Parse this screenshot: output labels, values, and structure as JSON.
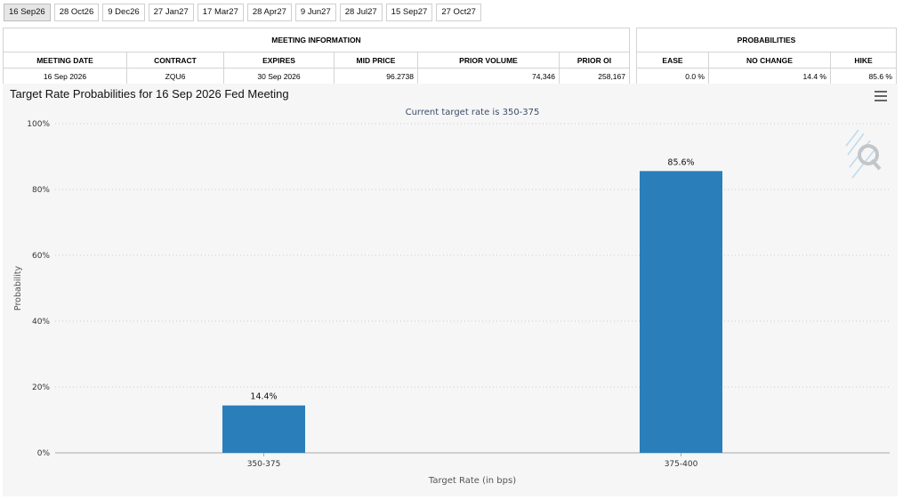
{
  "tabs": [
    {
      "label": "16 Sep26",
      "active": true
    },
    {
      "label": "28 Oct26",
      "active": false
    },
    {
      "label": "9 Dec26",
      "active": false
    },
    {
      "label": "27 Jan27",
      "active": false
    },
    {
      "label": "17 Mar27",
      "active": false
    },
    {
      "label": "28 Apr27",
      "active": false
    },
    {
      "label": "9 Jun27",
      "active": false
    },
    {
      "label": "28 Jul27",
      "active": false
    },
    {
      "label": "15 Sep27",
      "active": false
    },
    {
      "label": "27 Oct27",
      "active": false
    }
  ],
  "meeting_info": {
    "group_title": "MEETING INFORMATION",
    "headers": {
      "meeting_date": "MEETING DATE",
      "contract": "CONTRACT",
      "expires": "EXPIRES",
      "mid_price": "MID PRICE",
      "prior_volume": "PRIOR VOLUME",
      "prior_oi": "PRIOR OI"
    },
    "row": {
      "meeting_date": "16 Sep 2026",
      "contract": "ZQU6",
      "expires": "30 Sep 2026",
      "mid_price": "96.2738",
      "prior_volume": "74,346",
      "prior_oi": "258,167"
    }
  },
  "probabilities": {
    "group_title": "PROBABILITIES",
    "headers": {
      "ease": "EASE",
      "no_change": "NO CHANGE",
      "hike": "HIKE"
    },
    "row": {
      "ease": "0.0 %",
      "no_change": "14.4 %",
      "hike": "85.6 %"
    }
  },
  "chart": {
    "title": "Target Rate Probabilities for 16 Sep 2026 Fed Meeting",
    "menu_icon": "hamburger-menu-icon",
    "watermark_icon": "q-logo-icon"
  },
  "chart_data": {
    "type": "bar",
    "subtitle": "Current target rate is 350-375",
    "categories": [
      "350-375",
      "375-400"
    ],
    "values": [
      14.4,
      85.6
    ],
    "value_labels": [
      "14.4%",
      "85.6%"
    ],
    "xlabel": "Target Rate (in bps)",
    "ylabel": "Probability",
    "ylim": [
      0,
      100
    ],
    "yticks": [
      0,
      20,
      40,
      60,
      80,
      100
    ],
    "ytick_labels": [
      "0%",
      "20%",
      "40%",
      "60%",
      "80%",
      "100%"
    ],
    "bar_color": "#2a7fba",
    "grid": true,
    "legend": "none"
  }
}
